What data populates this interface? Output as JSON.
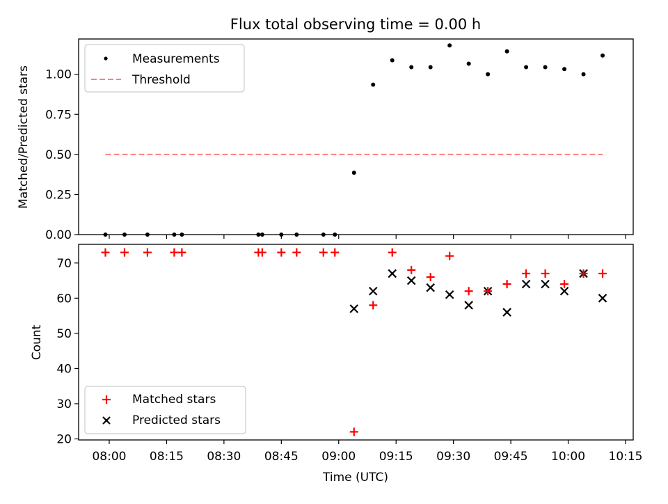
{
  "chart_data": [
    {
      "type": "scatter",
      "title": "Flux total observing time = 0.00 h",
      "ylabel": "Matched/Predicted stars",
      "xlabel": "",
      "ylim": [
        0.0,
        1.22
      ],
      "yticks": [
        "0.00",
        "0.25",
        "0.50",
        "0.75",
        "1.00"
      ],
      "grid": false,
      "legend": "top-left",
      "series": [
        {
          "name": "Measurements",
          "marker": "dot",
          "color": "#000000",
          "x": [
            "07:59",
            "08:04",
            "08:10",
            "08:17",
            "08:19",
            "08:39",
            "08:40",
            "08:45",
            "08:49",
            "08:56",
            "08:59",
            "09:04",
            "09:09",
            "09:14",
            "09:19",
            "09:24",
            "09:29",
            "09:34",
            "09:39",
            "09:44",
            "09:49",
            "09:54",
            "09:59",
            "10:04",
            "10:09"
          ],
          "y": [
            0.0,
            0.0,
            0.0,
            0.0,
            0.0,
            0.0,
            0.0,
            0.0,
            0.0,
            0.0,
            0.0,
            0.386,
            0.935,
            1.087,
            1.044,
            1.044,
            1.18,
            1.066,
            1.0,
            1.143,
            1.044,
            1.044,
            1.032,
            1.0,
            1.117
          ]
        },
        {
          "name": "Threshold",
          "style": "dashed",
          "color": "#ff7f7f",
          "x": [
            "07:59",
            "10:09"
          ],
          "y": [
            0.5,
            0.5
          ]
        }
      ]
    },
    {
      "type": "scatter",
      "title": "",
      "ylabel": "Count",
      "xlabel": "Time (UTC)",
      "ylim": [
        19.7,
        75.3
      ],
      "yticks": [
        "20",
        "30",
        "40",
        "50",
        "60",
        "70"
      ],
      "xlim": [
        "07:52",
        "10:17"
      ],
      "xticks": [
        "08:00",
        "08:15",
        "08:30",
        "08:45",
        "09:00",
        "09:15",
        "09:30",
        "09:45",
        "10:00",
        "10:15"
      ],
      "grid": false,
      "legend": "bottom-left",
      "series": [
        {
          "name": "Matched stars",
          "marker": "plus",
          "color": "#ff0000",
          "x": [
            "07:59",
            "08:04",
            "08:10",
            "08:17",
            "08:19",
            "08:39",
            "08:40",
            "08:45",
            "08:49",
            "08:56",
            "08:59",
            "09:04",
            "09:09",
            "09:14",
            "09:19",
            "09:24",
            "09:29",
            "09:34",
            "09:39",
            "09:44",
            "09:49",
            "09:54",
            "09:59",
            "10:04",
            "10:09"
          ],
          "y": [
            73,
            73,
            73,
            73,
            73,
            73,
            73,
            73,
            73,
            73,
            73,
            22,
            58,
            73,
            68,
            66,
            72,
            62,
            62,
            64,
            67,
            67,
            64,
            67,
            67
          ]
        },
        {
          "name": "Predicted stars",
          "marker": "x",
          "color": "#000000",
          "x": [
            "09:04",
            "09:09",
            "09:14",
            "09:19",
            "09:24",
            "09:29",
            "09:34",
            "09:39",
            "09:44",
            "09:49",
            "09:54",
            "09:59",
            "10:04",
            "10:09"
          ],
          "y": [
            57,
            62,
            67,
            65,
            63,
            61,
            58,
            62,
            56,
            64,
            64,
            62,
            67,
            60
          ]
        }
      ]
    }
  ]
}
